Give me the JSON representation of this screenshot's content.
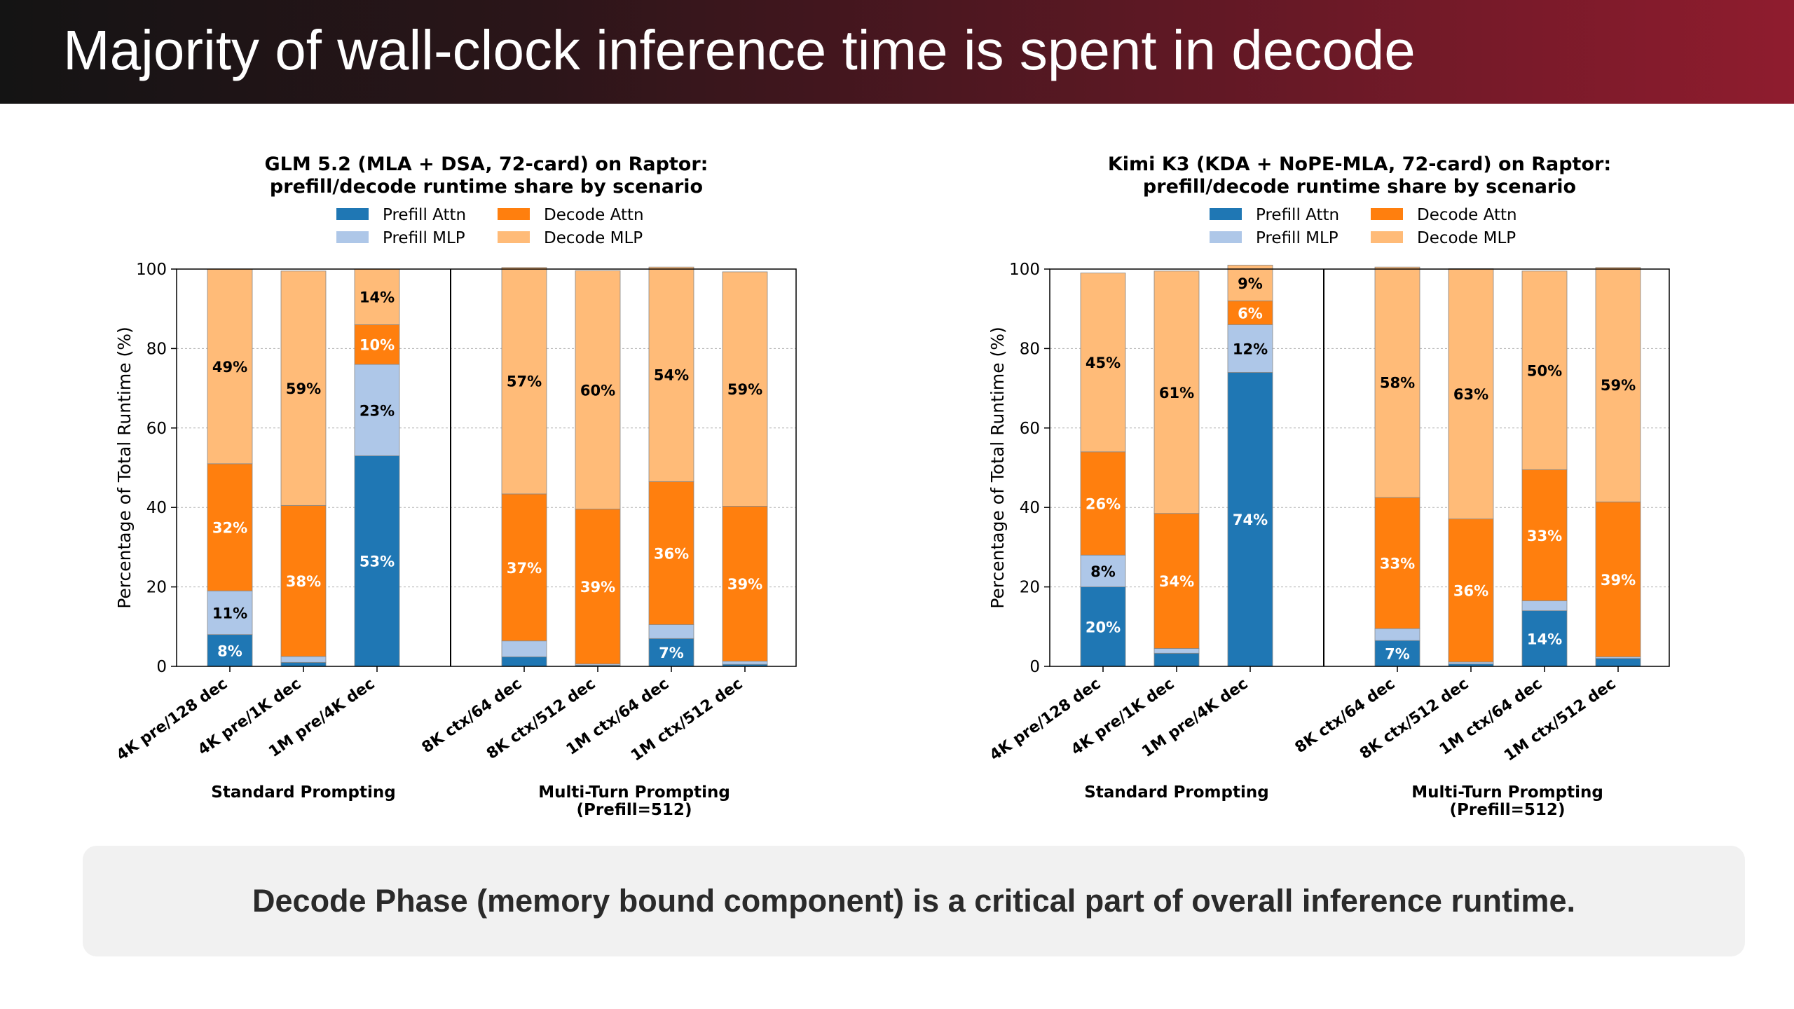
{
  "slide": {
    "title": "Majority of wall-clock inference time is spent in decode",
    "callout": "Decode Phase (memory bound component) is a critical part of overall inference runtime."
  },
  "colors": {
    "prefill_attn": "#1f77b4",
    "prefill_mlp": "#aec7e8",
    "decode_attn": "#ff7f0e",
    "decode_mlp": "#ffbb78"
  },
  "chart_data": [
    {
      "type": "bar",
      "stacked": true,
      "title": "GLM 5.2 (MLA + DSA, 72-card) on Raptor:",
      "subtitle": "prefill/decode runtime share by scenario",
      "ylabel": "Percentage of Total Runtime (%)",
      "ylim": [
        0,
        100
      ],
      "yticks": [
        "0",
        "20",
        "40",
        "60",
        "80",
        "100"
      ],
      "grid": true,
      "legend": "top-center",
      "categories": [
        "4K pre/128 dec",
        "4K pre/1K dec",
        "1M pre/4K dec",
        "8K ctx/64 dec",
        "8K ctx/512 dec",
        "1M ctx/64 dec",
        "1M ctx/512 dec"
      ],
      "groups": [
        {
          "label": "Standard Prompting",
          "members": [
            0,
            1,
            2
          ]
        },
        {
          "label": "Multi-Turn Prompting",
          "label2": "(Prefill=512)",
          "members": [
            3,
            4,
            5,
            6
          ]
        }
      ],
      "series": [
        {
          "name": "Prefill Attn",
          "values": [
            8,
            1,
            53,
            2.4,
            0.3,
            7,
            0.5
          ],
          "labels": [
            "8%",
            "",
            "53%",
            "",
            "",
            "7%",
            ""
          ]
        },
        {
          "name": "Prefill MLP",
          "values": [
            11,
            1.5,
            23,
            4,
            0.3,
            3.5,
            0.8
          ],
          "labels": [
            "11%",
            "",
            "23%",
            "",
            "",
            "",
            ""
          ]
        },
        {
          "name": "Decode Attn",
          "values": [
            32,
            38,
            10,
            37,
            39,
            36,
            39
          ],
          "labels": [
            "32%",
            "38%",
            "10%",
            "37%",
            "39%",
            "36%",
            "39%"
          ]
        },
        {
          "name": "Decode MLP",
          "values": [
            49,
            59,
            14,
            57,
            60,
            54,
            59
          ],
          "labels": [
            "49%",
            "59%",
            "14%",
            "57%",
            "60%",
            "54%",
            "59%"
          ]
        }
      ]
    },
    {
      "type": "bar",
      "stacked": true,
      "title": "Kimi K3 (KDA + NoPE-MLA, 72-card) on Raptor:",
      "subtitle": "prefill/decode runtime share by scenario",
      "ylabel": "Percentage of Total Runtime (%)",
      "ylim": [
        0,
        100
      ],
      "yticks": [
        "0",
        "20",
        "40",
        "60",
        "80",
        "100"
      ],
      "grid": true,
      "legend": "top-center",
      "categories": [
        "4K pre/128 dec",
        "4K pre/1K dec",
        "1M pre/4K dec",
        "8K ctx/64 dec",
        "8K ctx/512 dec",
        "1M ctx/64 dec",
        "1M ctx/512 dec"
      ],
      "groups": [
        {
          "label": "Standard Prompting",
          "members": [
            0,
            1,
            2
          ]
        },
        {
          "label": "Multi-Turn Prompting",
          "label2": "(Prefill=512)",
          "members": [
            3,
            4,
            5,
            6
          ]
        }
      ],
      "series": [
        {
          "name": "Prefill Attn",
          "values": [
            20,
            3.3,
            74,
            6.5,
            0.6,
            14,
            2
          ],
          "labels": [
            "20%",
            "",
            "74%",
            "7%",
            "",
            "14%",
            ""
          ]
        },
        {
          "name": "Prefill MLP",
          "values": [
            8,
            1.2,
            12,
            3,
            0.5,
            2.5,
            0.4
          ],
          "labels": [
            "8%",
            "",
            "12%",
            "",
            "",
            "",
            ""
          ]
        },
        {
          "name": "Decode Attn",
          "values": [
            26,
            34,
            6,
            33,
            36,
            33,
            39
          ],
          "labels": [
            "26%",
            "34%",
            "6%",
            "33%",
            "36%",
            "33%",
            "39%"
          ]
        },
        {
          "name": "Decode MLP",
          "values": [
            45,
            61,
            9,
            58,
            63,
            50,
            59
          ],
          "labels": [
            "45%",
            "61%",
            "9%",
            "58%",
            "63%",
            "50%",
            "59%"
          ]
        }
      ]
    }
  ]
}
